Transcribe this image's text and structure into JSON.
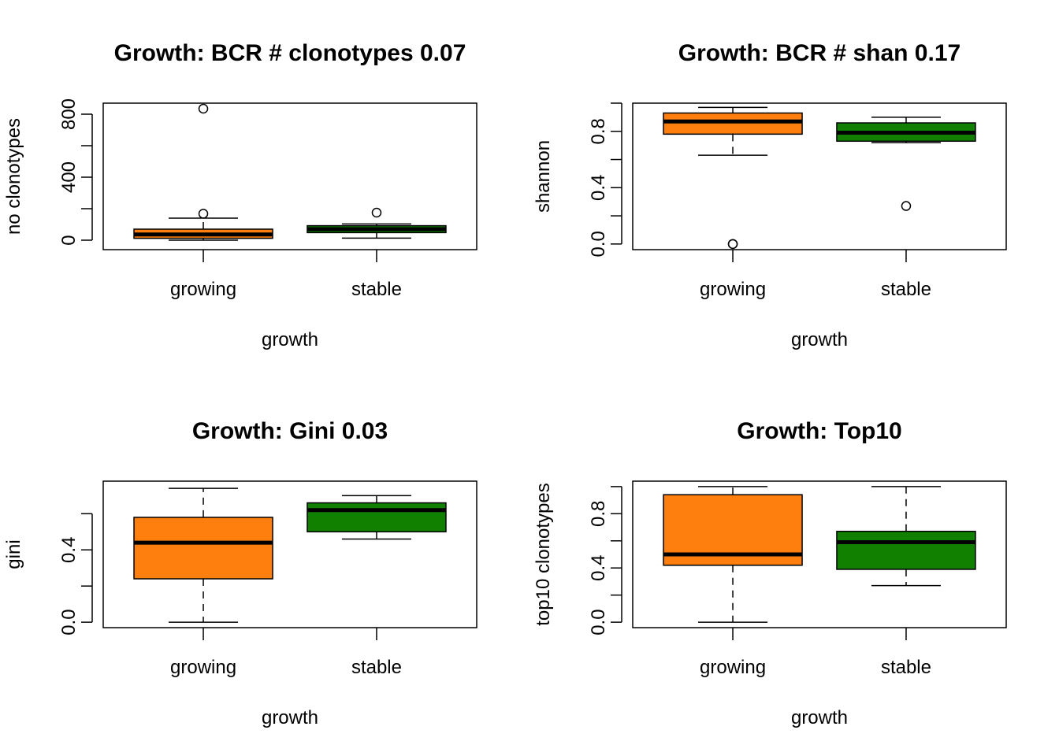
{
  "colors": {
    "growing": "#FF7F0E",
    "stable": "#117F00",
    "line": "#000000"
  },
  "chart_data": [
    {
      "type": "box",
      "title": "Growth: BCR # clonotypes 0.07",
      "xlabel": "growth",
      "ylabel": "no clonotypes",
      "categories": [
        "growing",
        "stable"
      ],
      "ylim": [
        -60,
        870
      ],
      "yticks": [
        0,
        200,
        400,
        600,
        800
      ],
      "ytick_labels": [
        "0",
        "400",
        "800"
      ],
      "series": [
        {
          "name": "growing",
          "min": 0,
          "q1": 12,
          "median": 36,
          "q3": 70,
          "max": 140,
          "outliers": [
            168,
            835
          ]
        },
        {
          "name": "stable",
          "min": 13,
          "q1": 48,
          "median": 70,
          "q3": 92,
          "max": 103,
          "outliers": [
            175
          ]
        }
      ]
    },
    {
      "type": "box",
      "title": "Growth: BCR # shan 0.17",
      "xlabel": "growth",
      "ylabel": "shannon",
      "categories": [
        "growing",
        "stable"
      ],
      "ylim": [
        -0.04,
        1.0
      ],
      "yticks": [
        0,
        0.2,
        0.4,
        0.6,
        0.8,
        1.0
      ],
      "ytick_labels": [
        "0.0",
        "0.4",
        "0.8"
      ],
      "series": [
        {
          "name": "growing",
          "min": 0.63,
          "q1": 0.78,
          "median": 0.87,
          "q3": 0.93,
          "max": 0.97,
          "outliers": [
            0.0,
            0.0
          ]
        },
        {
          "name": "stable",
          "min": 0.72,
          "q1": 0.73,
          "median": 0.79,
          "q3": 0.86,
          "max": 0.9,
          "outliers": [
            0.27
          ]
        }
      ]
    },
    {
      "type": "box",
      "title": "Growth: Gini 0.03",
      "xlabel": "growth",
      "ylabel": "gini",
      "categories": [
        "growing",
        "stable"
      ],
      "ylim": [
        -0.03,
        0.78
      ],
      "yticks": [
        0,
        0.2,
        0.4,
        0.6
      ],
      "ytick_labels": [
        "0.0",
        "0.4"
      ],
      "series": [
        {
          "name": "growing",
          "min": 0.0,
          "q1": 0.24,
          "median": 0.44,
          "q3": 0.58,
          "max": 0.74,
          "outliers": []
        },
        {
          "name": "stable",
          "min": 0.46,
          "q1": 0.5,
          "median": 0.62,
          "q3": 0.66,
          "max": 0.7,
          "outliers": []
        }
      ]
    },
    {
      "type": "box",
      "title": "Growth: Top10",
      "xlabel": "growth",
      "ylabel": "top10 clonotypes",
      "categories": [
        "growing",
        "stable"
      ],
      "ylim": [
        -0.04,
        1.04
      ],
      "yticks": [
        0,
        0.2,
        0.4,
        0.6,
        0.8,
        1.0
      ],
      "ytick_labels": [
        "0.0",
        "0.4",
        "0.8"
      ],
      "series": [
        {
          "name": "growing",
          "min": 0.0,
          "q1": 0.42,
          "median": 0.5,
          "q3": 0.94,
          "max": 1.0,
          "outliers": []
        },
        {
          "name": "stable",
          "min": 0.27,
          "q1": 0.39,
          "median": 0.59,
          "q3": 0.67,
          "max": 1.0,
          "outliers": []
        }
      ]
    }
  ]
}
